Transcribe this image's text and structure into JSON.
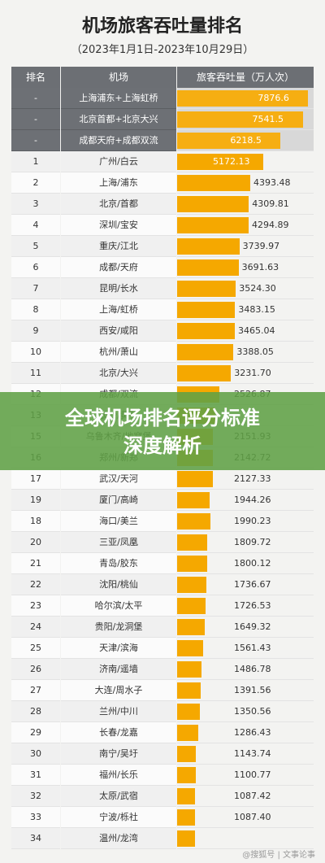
{
  "title": "机场旅客吞吐量排名",
  "subtitle": "（2023年1月1日-2023年10月29日）",
  "banner": {
    "line1": "全球机场排名评分标准",
    "line2": "深度解析"
  },
  "watermark": "@搜狐号 | 文事论事",
  "colors": {
    "bar": "#f5a800",
    "header": "#6c6f74"
  },
  "chart_data": {
    "type": "table",
    "title": "机场旅客吞吐量排名",
    "columns": [
      "排名",
      "机场",
      "旅客吞吐量（万人次）"
    ],
    "xlim": [
      0,
      8200
    ],
    "rows": [
      {
        "rank": "-",
        "name": "上海浦东+上海虹桥",
        "value": 7876.6,
        "label": "7876.6"
      },
      {
        "rank": "-",
        "name": "北京首都+北京大兴",
        "value": 7541.5,
        "label": "7541.5"
      },
      {
        "rank": "-",
        "name": "成都天府+成都双流",
        "value": 6218.5,
        "label": "6218.5"
      },
      {
        "rank": "1",
        "name": "广州/白云",
        "value": 5172.13,
        "label": "5172.13"
      },
      {
        "rank": "2",
        "name": "上海/浦东",
        "value": 4393.48,
        "label": "4393.48"
      },
      {
        "rank": "3",
        "name": "北京/首都",
        "value": 4309.81,
        "label": "4309.81"
      },
      {
        "rank": "4",
        "name": "深圳/宝安",
        "value": 4294.89,
        "label": "4294.89"
      },
      {
        "rank": "5",
        "name": "重庆/江北",
        "value": 3739.97,
        "label": "3739.97"
      },
      {
        "rank": "6",
        "name": "成都/天府",
        "value": 3691.63,
        "label": "3691.63"
      },
      {
        "rank": "7",
        "name": "昆明/长水",
        "value": 3524.3,
        "label": "3524.30"
      },
      {
        "rank": "8",
        "name": "上海/虹桥",
        "value": 3483.15,
        "label": "3483.15"
      },
      {
        "rank": "9",
        "name": "西安/咸阳",
        "value": 3465.04,
        "label": "3465.04"
      },
      {
        "rank": "10",
        "name": "杭州/萧山",
        "value": 3388.05,
        "label": "3388.05"
      },
      {
        "rank": "11",
        "name": "北京/大兴",
        "value": 3231.7,
        "label": "3231.70"
      },
      {
        "rank": "12",
        "name": "成都/双流",
        "value": 2526.87,
        "label": "2526.87"
      },
      {
        "rank": "13",
        "name": "长沙/黄花",
        "value": 2300,
        "label": ""
      },
      {
        "rank": "15",
        "name": "乌鲁木齐/地窝堡",
        "value": 2151.93,
        "label": "2151.93"
      },
      {
        "rank": "16",
        "name": "郑州/新郑",
        "value": 2142.72,
        "label": "2142.72"
      },
      {
        "rank": "17",
        "name": "武汉/天河",
        "value": 2127.33,
        "label": "2127.33"
      },
      {
        "rank": "19",
        "name": "厦门/高崎",
        "value": 1944.26,
        "label": "1944.26"
      },
      {
        "rank": "18",
        "name": "海口/美兰",
        "value": 1990.23,
        "label": "1990.23"
      },
      {
        "rank": "20",
        "name": "三亚/凤凰",
        "value": 1809.72,
        "label": "1809.72"
      },
      {
        "rank": "21",
        "name": "青岛/胶东",
        "value": 1800.12,
        "label": "1800.12"
      },
      {
        "rank": "22",
        "name": "沈阳/桃仙",
        "value": 1736.67,
        "label": "1736.67"
      },
      {
        "rank": "23",
        "name": "哈尔滨/太平",
        "value": 1726.53,
        "label": "1726.53"
      },
      {
        "rank": "24",
        "name": "贵阳/龙洞堡",
        "value": 1649.32,
        "label": "1649.32"
      },
      {
        "rank": "25",
        "name": "天津/滨海",
        "value": 1561.43,
        "label": "1561.43"
      },
      {
        "rank": "26",
        "name": "济南/遥墙",
        "value": 1486.78,
        "label": "1486.78"
      },
      {
        "rank": "27",
        "name": "大连/周水子",
        "value": 1391.56,
        "label": "1391.56"
      },
      {
        "rank": "28",
        "name": "兰州/中川",
        "value": 1350.56,
        "label": "1350.56"
      },
      {
        "rank": "29",
        "name": "长春/龙嘉",
        "value": 1286.43,
        "label": "1286.43"
      },
      {
        "rank": "30",
        "name": "南宁/吴圩",
        "value": 1143.74,
        "label": "1143.74"
      },
      {
        "rank": "31",
        "name": "福州/长乐",
        "value": 1100.77,
        "label": "1100.77"
      },
      {
        "rank": "32",
        "name": "太原/武宿",
        "value": 1087.42,
        "label": "1087.42"
      },
      {
        "rank": "33",
        "name": "宁波/栎社",
        "value": 1087.4,
        "label": "1087.40"
      },
      {
        "rank": "34",
        "name": "温州/龙湾",
        "value": 1060,
        "label": ""
      }
    ]
  }
}
